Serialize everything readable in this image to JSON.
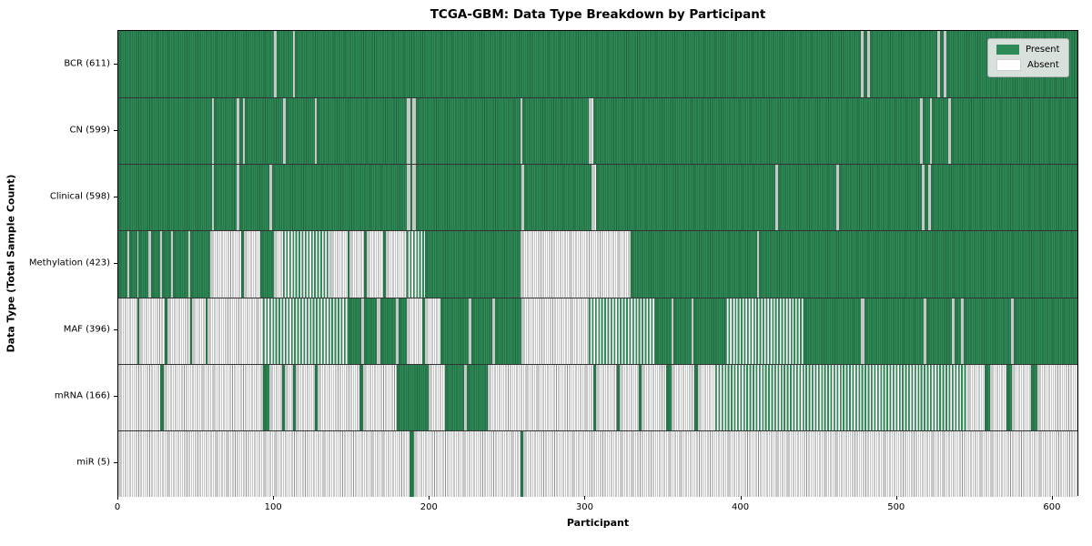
{
  "title": "TCGA-GBM: Data Type Breakdown by Participant",
  "xlabel": "Participant",
  "ylabel": "Data Type (Total Sample Count)",
  "legend": {
    "present_label": "Present",
    "absent_label": "Absent",
    "position": "upper right"
  },
  "colors": {
    "present": "#2e8b57",
    "present_edge": "#20623e",
    "absent": "#ffffff",
    "absent_edge": "#8f8f8f",
    "legend_bg": "#e8e8e8",
    "row_divider": "#333333"
  },
  "chart_data": {
    "type": "heatmap",
    "title": "TCGA-GBM: Data Type Breakdown by Participant",
    "xlabel": "Participant",
    "ylabel": "Data Type (Total Sample Count)",
    "x_ticks": [
      0,
      100,
      200,
      300,
      400,
      500,
      600
    ],
    "x_max": 617,
    "grid": false,
    "legend_position": "upper right",
    "states": {
      "P": "present",
      "A": "absent",
      "M": "mixed"
    },
    "rows": [
      {
        "label": "BCR (611)",
        "name": "BCR",
        "count": 611,
        "segments": [
          [
            0,
            100,
            "P"
          ],
          [
            100,
            101.5,
            "A"
          ],
          [
            101.5,
            112,
            "P"
          ],
          [
            112,
            113.5,
            "A"
          ],
          [
            113.5,
            477,
            "P"
          ],
          [
            477,
            478.5,
            "A"
          ],
          [
            478.5,
            481,
            "P"
          ],
          [
            481,
            482.5,
            "A"
          ],
          [
            482.5,
            526,
            "P"
          ],
          [
            526,
            527.5,
            "A"
          ],
          [
            527.5,
            530,
            "P"
          ],
          [
            530,
            531.5,
            "A"
          ],
          [
            531.5,
            617,
            "P"
          ]
        ]
      },
      {
        "label": "CN (599)",
        "name": "CN",
        "count": 599,
        "segments": [
          [
            0,
            60,
            "P"
          ],
          [
            60,
            61.5,
            "A"
          ],
          [
            61.5,
            76,
            "P"
          ],
          [
            76,
            77.5,
            "A"
          ],
          [
            77.5,
            80,
            "P"
          ],
          [
            80,
            81.5,
            "A"
          ],
          [
            81.5,
            106,
            "P"
          ],
          [
            106,
            107.5,
            "A"
          ],
          [
            107.5,
            126,
            "P"
          ],
          [
            126,
            127.5,
            "A"
          ],
          [
            127.5,
            185,
            "P"
          ],
          [
            185,
            187.5,
            "A"
          ],
          [
            187.5,
            189,
            "P"
          ],
          [
            189,
            191,
            "A"
          ],
          [
            191,
            258,
            "P"
          ],
          [
            258,
            259.5,
            "A"
          ],
          [
            259.5,
            302,
            "P"
          ],
          [
            302,
            305,
            "A"
          ],
          [
            305,
            515,
            "P"
          ],
          [
            515,
            516.5,
            "A"
          ],
          [
            516.5,
            521,
            "P"
          ],
          [
            521,
            522.5,
            "A"
          ],
          [
            522.5,
            533,
            "P"
          ],
          [
            533,
            534.5,
            "A"
          ],
          [
            534.5,
            617,
            "P"
          ]
        ]
      },
      {
        "label": "Clinical (598)",
        "name": "Clinical",
        "count": 598,
        "segments": [
          [
            0,
            60,
            "P"
          ],
          [
            60,
            61.5,
            "A"
          ],
          [
            61.5,
            76,
            "P"
          ],
          [
            76,
            77.5,
            "A"
          ],
          [
            77.5,
            97,
            "P"
          ],
          [
            97,
            98.5,
            "A"
          ],
          [
            98.5,
            185,
            "P"
          ],
          [
            185,
            187.5,
            "A"
          ],
          [
            187.5,
            189,
            "P"
          ],
          [
            189,
            191,
            "A"
          ],
          [
            191,
            259,
            "P"
          ],
          [
            259,
            260.5,
            "A"
          ],
          [
            260.5,
            304,
            "P"
          ],
          [
            304,
            306.5,
            "A"
          ],
          [
            306.5,
            422,
            "P"
          ],
          [
            422,
            423.5,
            "A"
          ],
          [
            423.5,
            461,
            "P"
          ],
          [
            461,
            462.5,
            "A"
          ],
          [
            462.5,
            516,
            "P"
          ],
          [
            516,
            517.5,
            "A"
          ],
          [
            517.5,
            520,
            "P"
          ],
          [
            520,
            521.5,
            "A"
          ],
          [
            521.5,
            617,
            "P"
          ]
        ]
      },
      {
        "label": "Methylation (423)",
        "name": "Methylation",
        "count": 423,
        "segments": [
          [
            0,
            6,
            "P"
          ],
          [
            6,
            7,
            "A"
          ],
          [
            7,
            12,
            "P"
          ],
          [
            12,
            13,
            "A"
          ],
          [
            13,
            19,
            "P"
          ],
          [
            19,
            21,
            "A"
          ],
          [
            21,
            27,
            "P"
          ],
          [
            27,
            28,
            "A"
          ],
          [
            28,
            34,
            "P"
          ],
          [
            34,
            35,
            "A"
          ],
          [
            35,
            45,
            "P"
          ],
          [
            45,
            46,
            "A"
          ],
          [
            46,
            59,
            "P"
          ],
          [
            59,
            79,
            "A"
          ],
          [
            79,
            80.5,
            "P"
          ],
          [
            80.5,
            91,
            "A"
          ],
          [
            91,
            100,
            "P"
          ],
          [
            100,
            106,
            "A"
          ],
          [
            106,
            136,
            "M"
          ],
          [
            136,
            147,
            "A"
          ],
          [
            147,
            148.5,
            "P"
          ],
          [
            148.5,
            158,
            "A"
          ],
          [
            158,
            159.5,
            "P"
          ],
          [
            159.5,
            170,
            "A"
          ],
          [
            170,
            172,
            "P"
          ],
          [
            172,
            185,
            "A"
          ],
          [
            185,
            197,
            "M"
          ],
          [
            197,
            258,
            "P"
          ],
          [
            258,
            329,
            "A"
          ],
          [
            329,
            410,
            "P"
          ],
          [
            410,
            411.5,
            "A"
          ],
          [
            411.5,
            617,
            "P"
          ]
        ]
      },
      {
        "label": "MAF (396)",
        "name": "MAF",
        "count": 396,
        "segments": [
          [
            0,
            12,
            "A"
          ],
          [
            12,
            13.5,
            "P"
          ],
          [
            13.5,
            30,
            "A"
          ],
          [
            30,
            31.5,
            "P"
          ],
          [
            31.5,
            46,
            "A"
          ],
          [
            46,
            47.5,
            "P"
          ],
          [
            47.5,
            56,
            "A"
          ],
          [
            56,
            57.5,
            "P"
          ],
          [
            57.5,
            93,
            "A"
          ],
          [
            93,
            148,
            "M"
          ],
          [
            148,
            156,
            "P"
          ],
          [
            156,
            158,
            "A"
          ],
          [
            158,
            166,
            "P"
          ],
          [
            166,
            168,
            "A"
          ],
          [
            168,
            178,
            "P"
          ],
          [
            178,
            180,
            "A"
          ],
          [
            180,
            185,
            "P"
          ],
          [
            185,
            195,
            "A"
          ],
          [
            195,
            197,
            "P"
          ],
          [
            197,
            207,
            "A"
          ],
          [
            207,
            225,
            "P"
          ],
          [
            225,
            226.5,
            "A"
          ],
          [
            226.5,
            240,
            "P"
          ],
          [
            240,
            242,
            "A"
          ],
          [
            242,
            259,
            "P"
          ],
          [
            259,
            302,
            "A"
          ],
          [
            302,
            345,
            "M"
          ],
          [
            345,
            355,
            "P"
          ],
          [
            355,
            356.5,
            "A"
          ],
          [
            356.5,
            368,
            "P"
          ],
          [
            368,
            369.5,
            "A"
          ],
          [
            369.5,
            390,
            "P"
          ],
          [
            390,
            440,
            "M"
          ],
          [
            440,
            477,
            "P"
          ],
          [
            477,
            479,
            "A"
          ],
          [
            479,
            517,
            "P"
          ],
          [
            517,
            519,
            "A"
          ],
          [
            519,
            535,
            "P"
          ],
          [
            535,
            537,
            "A"
          ],
          [
            537,
            541,
            "P"
          ],
          [
            541,
            543,
            "A"
          ],
          [
            543,
            573,
            "P"
          ],
          [
            573,
            575,
            "A"
          ],
          [
            575,
            617,
            "P"
          ]
        ]
      },
      {
        "label": "mRNA (166)",
        "name": "mRNA",
        "count": 166,
        "segments": [
          [
            0,
            27,
            "A"
          ],
          [
            27,
            29,
            "P"
          ],
          [
            29,
            93,
            "A"
          ],
          [
            93,
            97,
            "P"
          ],
          [
            97,
            105,
            "A"
          ],
          [
            105,
            107,
            "P"
          ],
          [
            107,
            112,
            "A"
          ],
          [
            112,
            114,
            "P"
          ],
          [
            114,
            126,
            "A"
          ],
          [
            126,
            128,
            "P"
          ],
          [
            128,
            155,
            "A"
          ],
          [
            155,
            157,
            "P"
          ],
          [
            157,
            179,
            "A"
          ],
          [
            179,
            199,
            "P"
          ],
          [
            199,
            210,
            "A"
          ],
          [
            210,
            222,
            "P"
          ],
          [
            222,
            224,
            "A"
          ],
          [
            224,
            237,
            "P"
          ],
          [
            237,
            305,
            "A"
          ],
          [
            305,
            307,
            "P"
          ],
          [
            307,
            320,
            "A"
          ],
          [
            320,
            322,
            "P"
          ],
          [
            322,
            334,
            "A"
          ],
          [
            334,
            336,
            "P"
          ],
          [
            336,
            352,
            "A"
          ],
          [
            352,
            355,
            "P"
          ],
          [
            355,
            370,
            "A"
          ],
          [
            370,
            372,
            "P"
          ],
          [
            372,
            383,
            "A"
          ],
          [
            383,
            545,
            "M"
          ],
          [
            545,
            556,
            "A"
          ],
          [
            556,
            560,
            "P"
          ],
          [
            560,
            570,
            "A"
          ],
          [
            570,
            574,
            "P"
          ],
          [
            574,
            586,
            "A"
          ],
          [
            586,
            590,
            "P"
          ],
          [
            590,
            617,
            "A"
          ]
        ]
      },
      {
        "label": "miR (5)",
        "name": "miR",
        "count": 5,
        "segments": [
          [
            0,
            187,
            "A"
          ],
          [
            187,
            190,
            "P"
          ],
          [
            190,
            258,
            "A"
          ],
          [
            258,
            260,
            "P"
          ],
          [
            260,
            617,
            "A"
          ]
        ]
      }
    ]
  }
}
